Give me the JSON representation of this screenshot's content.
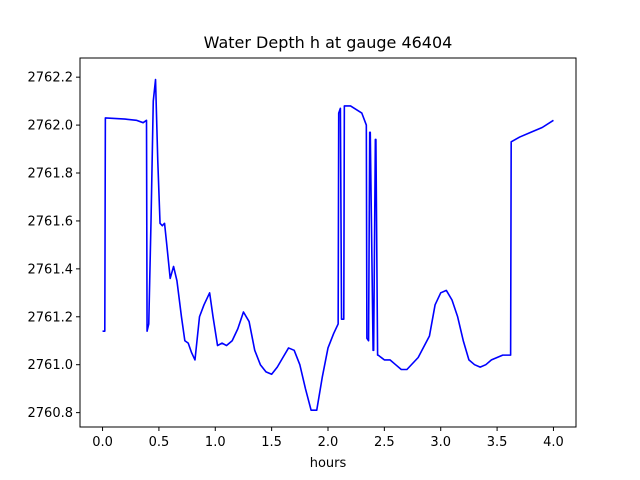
{
  "chart_data": {
    "type": "line",
    "title": "Water Depth h at gauge 46404",
    "xlabel": "hours",
    "ylabel": "",
    "xlim": [
      -0.2,
      4.2
    ],
    "ylim": [
      2760.74,
      2762.28
    ],
    "xticks": [
      0.0,
      0.5,
      1.0,
      1.5,
      2.0,
      2.5,
      3.0,
      3.5,
      4.0
    ],
    "xtick_labels": [
      "0.0",
      "0.5",
      "1.0",
      "1.5",
      "2.0",
      "2.5",
      "3.0",
      "3.5",
      "4.0"
    ],
    "yticks": [
      2760.8,
      2761.0,
      2761.2,
      2761.4,
      2761.6,
      2761.8,
      2762.0,
      2762.2
    ],
    "ytick_labels": [
      "2760.8",
      "2761.0",
      "2761.2",
      "2761.4",
      "2761.6",
      "2761.8",
      "2762.0",
      "2762.2"
    ],
    "grid": false,
    "series": [
      {
        "color": "#0000ff",
        "x": [
          0.0,
          0.02,
          0.025,
          0.2,
          0.3,
          0.36,
          0.39,
          0.395,
          0.41,
          0.43,
          0.45,
          0.47,
          0.49,
          0.51,
          0.53,
          0.55,
          0.57,
          0.6,
          0.63,
          0.66,
          0.7,
          0.73,
          0.76,
          0.79,
          0.82,
          0.86,
          0.9,
          0.95,
          0.98,
          1.02,
          1.06,
          1.1,
          1.15,
          1.2,
          1.25,
          1.3,
          1.35,
          1.4,
          1.45,
          1.5,
          1.55,
          1.6,
          1.65,
          1.7,
          1.75,
          1.8,
          1.85,
          1.9,
          1.95,
          2.0,
          2.05,
          2.09,
          2.095,
          2.11,
          2.12,
          2.125,
          2.14,
          2.145,
          2.2,
          2.3,
          2.34,
          2.345,
          2.36,
          2.37,
          2.375,
          2.4,
          2.405,
          2.42,
          2.425,
          2.44,
          2.445,
          2.5,
          2.55,
          2.6,
          2.65,
          2.7,
          2.8,
          2.9,
          2.95,
          3.0,
          3.05,
          3.1,
          3.15,
          3.2,
          3.25,
          3.3,
          3.35,
          3.4,
          3.45,
          3.5,
          3.55,
          3.6,
          3.62,
          3.625,
          3.7,
          3.8,
          3.9,
          4.0
        ],
        "y": [
          2761.14,
          2761.14,
          2762.03,
          2762.025,
          2762.02,
          2762.01,
          2762.02,
          2761.14,
          2761.17,
          2761.6,
          2762.1,
          2762.19,
          2761.85,
          2761.59,
          2761.58,
          2761.59,
          2761.5,
          2761.36,
          2761.41,
          2761.35,
          2761.2,
          2761.1,
          2761.09,
          2761.05,
          2761.02,
          2761.2,
          2761.25,
          2761.3,
          2761.2,
          2761.08,
          2761.09,
          2761.08,
          2761.1,
          2761.15,
          2761.22,
          2761.18,
          2761.06,
          2761.0,
          2760.97,
          2760.96,
          2760.99,
          2761.03,
          2761.07,
          2761.06,
          2761.0,
          2760.9,
          2760.81,
          2760.81,
          2760.95,
          2761.07,
          2761.13,
          2761.17,
          2762.05,
          2762.07,
          2761.19,
          2761.19,
          2761.19,
          2762.08,
          2762.08,
          2762.05,
          2762.0,
          2761.11,
          2761.1,
          2761.97,
          2761.97,
          2761.06,
          2761.06,
          2761.94,
          2761.94,
          2761.04,
          2761.04,
          2761.02,
          2761.02,
          2761.0,
          2760.98,
          2760.98,
          2761.03,
          2761.12,
          2761.25,
          2761.3,
          2761.31,
          2761.27,
          2761.2,
          2761.1,
          2761.02,
          2761.0,
          2760.99,
          2761.0,
          2761.02,
          2761.03,
          2761.04,
          2761.04,
          2761.04,
          2761.93,
          2761.95,
          2761.97,
          2761.99,
          2762.02
        ]
      }
    ]
  }
}
